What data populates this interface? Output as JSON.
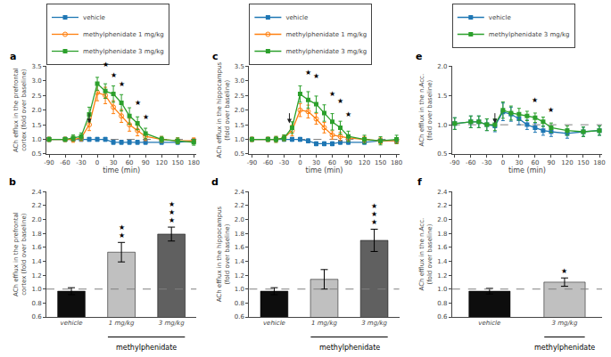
{
  "chart_data": [
    {
      "type": "line",
      "title": "a",
      "xlabel": "time (min)",
      "ylabel": "ACh efflux in the prefrontal\ncortex (fold over baseline)",
      "x": [
        -90,
        -60,
        -45,
        -30,
        -15,
        0,
        15,
        30,
        45,
        60,
        75,
        90,
        120,
        150,
        180
      ],
      "xlim": [
        -95,
        185
      ],
      "xticks": [
        -90,
        -60,
        -30,
        0,
        30,
        60,
        90,
        120,
        150,
        180
      ],
      "ylim": [
        0.5,
        3.5
      ],
      "yticks": [
        0.5,
        {
          "value": 1.0,
          "label": "1.0"
        },
        1.5,
        {
          "value": 2.0,
          "label": "2.0"
        },
        2.5,
        {
          "value": 3.0,
          "label": "3.0"
        },
        3.5
      ],
      "grid": false,
      "legend": "top left",
      "series": [
        {
          "name": "vehicle",
          "marker": "square",
          "line_style": "solid",
          "values": [
            1.0,
            1.0,
            1.0,
            1.0,
            1.0,
            1.0,
            1.0,
            0.9,
            0.9,
            0.9,
            0.9,
            0.9,
            0.9,
            0.9,
            0.95
          ],
          "errors": [
            0.07,
            0.07,
            0.07,
            0.07,
            0.07,
            0.07,
            0.07,
            0.07,
            0.07,
            0.07,
            0.07,
            0.07,
            0.07,
            0.07,
            0.07
          ]
        },
        {
          "name": "methylphenidate 1 mg/kg",
          "marker": "circle-open",
          "line_style": "solid",
          "values": [
            1.0,
            1.0,
            1.0,
            1.05,
            1.5,
            2.6,
            2.5,
            2.1,
            1.8,
            1.5,
            1.3,
            1.1,
            1.0,
            0.95,
            0.95
          ],
          "errors": [
            0.07,
            0.07,
            0.1,
            0.1,
            0.2,
            0.28,
            0.28,
            0.22,
            0.22,
            0.22,
            0.18,
            0.14,
            0.1,
            0.1,
            0.1
          ]
        },
        {
          "name": "methylphenidate 3 mg/kg",
          "marker": "square",
          "line_style": "solid",
          "values": [
            1.0,
            1.0,
            1.05,
            1.1,
            1.85,
            2.9,
            2.65,
            2.55,
            2.25,
            1.8,
            1.55,
            1.2,
            1.0,
            0.95,
            0.9
          ],
          "errors": [
            0.07,
            0.07,
            0.1,
            0.12,
            0.25,
            0.22,
            0.25,
            0.28,
            0.28,
            0.28,
            0.22,
            0.18,
            0.1,
            0.1,
            0.1
          ]
        }
      ],
      "annotations": [
        {
          "x": 15,
          "y": 3.35,
          "text": "★"
        },
        {
          "x": 30,
          "y": 3.0,
          "text": "★"
        },
        {
          "x": 45,
          "y": 2.68,
          "text": "★"
        },
        {
          "x": 75,
          "y": 2.05,
          "text": "★"
        },
        {
          "x": 90,
          "y": 1.55,
          "text": "★"
        },
        {
          "x": -15,
          "marker": "arrow"
        },
        {
          "y": 1.0,
          "line_style": "dashed"
        }
      ]
    },
    {
      "type": "line",
      "title": "c",
      "xlabel": "time (min)",
      "ylabel": "ACh efflux in the hippocampus\n(fold over baseline)",
      "x": [
        -90,
        -60,
        -45,
        -30,
        -15,
        0,
        15,
        30,
        45,
        60,
        75,
        90,
        120,
        150,
        180
      ],
      "xlim": [
        -95,
        185
      ],
      "xticks": [
        -90,
        -60,
        -30,
        0,
        30,
        60,
        90,
        120,
        150,
        180
      ],
      "ylim": [
        0.5,
        3.5
      ],
      "yticks": [
        0.5,
        {
          "value": 1.0,
          "label": "1.0"
        },
        1.5,
        {
          "value": 2.0,
          "label": "2.0"
        },
        2.5,
        {
          "value": 3.0,
          "label": "3.0"
        },
        3.5
      ],
      "grid": false,
      "legend": "top left",
      "series": [
        {
          "name": "vehicle",
          "marker": "square",
          "line_style": "solid",
          "values": [
            1.0,
            1.0,
            1.0,
            1.0,
            1.0,
            1.0,
            0.95,
            0.85,
            0.85,
            0.85,
            0.9,
            0.9,
            0.9,
            0.95,
            0.95
          ],
          "errors": [
            0.07,
            0.07,
            0.07,
            0.07,
            0.07,
            0.07,
            0.07,
            0.07,
            0.07,
            0.07,
            0.07,
            0.07,
            0.07,
            0.07,
            0.07
          ]
        },
        {
          "name": "methylphenidate 1 mg/kg",
          "marker": "circle-open",
          "line_style": "solid",
          "values": [
            1.0,
            1.0,
            1.0,
            1.05,
            1.3,
            2.0,
            1.95,
            1.7,
            1.4,
            1.15,
            1.1,
            1.05,
            1.0,
            0.95,
            0.95
          ],
          "errors": [
            0.07,
            0.07,
            0.1,
            0.1,
            0.18,
            0.22,
            0.22,
            0.18,
            0.18,
            0.14,
            0.14,
            0.1,
            0.1,
            0.1,
            0.1
          ]
        },
        {
          "name": "methylphenidate 3 mg/kg",
          "marker": "square",
          "line_style": "solid",
          "values": [
            1.0,
            1.0,
            1.0,
            1.05,
            1.4,
            2.55,
            2.35,
            2.2,
            1.9,
            1.6,
            1.4,
            1.1,
            1.0,
            0.95,
            1.0
          ],
          "errors": [
            0.07,
            0.07,
            0.1,
            0.1,
            0.2,
            0.28,
            0.28,
            0.28,
            0.28,
            0.28,
            0.22,
            0.18,
            0.14,
            0.14,
            0.14
          ]
        }
      ],
      "annotations": [
        {
          "x": 15,
          "y": 3.1,
          "text": "★"
        },
        {
          "x": 30,
          "y": 2.95,
          "text": "★"
        },
        {
          "x": 60,
          "y": 2.35,
          "text": "★"
        },
        {
          "x": 75,
          "y": 2.12,
          "text": "★"
        },
        {
          "x": 90,
          "y": 1.65,
          "text": "★"
        },
        {
          "x": -20,
          "marker": "arrow"
        },
        {
          "y": 1.0,
          "line_style": "dashed"
        }
      ]
    },
    {
      "type": "line",
      "title": "e",
      "xlabel": "time (min)",
      "ylabel": "ACh efflux in the n.Acc.\n(fold over baseline)",
      "x": [
        -90,
        -60,
        -45,
        -30,
        -15,
        0,
        15,
        30,
        45,
        60,
        75,
        90,
        120,
        150,
        180
      ],
      "xlim": [
        -95,
        185
      ],
      "xticks": [
        -90,
        -60,
        -30,
        0,
        30,
        60,
        90,
        120,
        150,
        180
      ],
      "ylim": [
        0.5,
        2.0
      ],
      "yticks": [
        0.5,
        {
          "value": 1.0,
          "label": "1.0"
        },
        1.5,
        {
          "value": 2.0,
          "label": "2.0"
        }
      ],
      "grid": false,
      "legend": "top left",
      "series": [
        {
          "name": "vehicle",
          "marker": "square",
          "line_style": "solid",
          "values": [
            1.02,
            1.05,
            1.05,
            1.0,
            0.98,
            1.22,
            1.18,
            1.1,
            1.0,
            0.95,
            0.9,
            0.88,
            0.85,
            0.88,
            0.9
          ],
          "errors": [
            0.1,
            0.1,
            0.1,
            0.1,
            0.1,
            0.15,
            0.12,
            0.1,
            0.08,
            0.08,
            0.08,
            0.08,
            0.08,
            0.08,
            0.08
          ]
        },
        {
          "name": "methylphenidate 3 mg/kg",
          "marker": "square",
          "line_style": "solid",
          "values": [
            1.02,
            1.05,
            1.05,
            1.0,
            1.0,
            1.25,
            1.2,
            1.18,
            1.15,
            1.12,
            1.05,
            0.95,
            0.9,
            0.88,
            0.9
          ],
          "errors": [
            0.1,
            0.1,
            0.1,
            0.1,
            0.1,
            0.14,
            0.12,
            0.1,
            0.08,
            0.08,
            0.08,
            0.08,
            0.08,
            0.08,
            0.08
          ]
        }
      ],
      "annotations": [
        {
          "x": 60,
          "y": 1.32,
          "text": "★"
        },
        {
          "x": 90,
          "y": 1.15,
          "text": "★"
        },
        {
          "x": -15,
          "marker": "arrow"
        },
        {
          "y": 1.0,
          "line_style": "dashed"
        }
      ]
    },
    {
      "type": "bar",
      "title": "b",
      "ylabel": "ACh efflux in the prefrontal\ncortex (fold over baseline)",
      "categories": [
        "vehicle",
        "1 mg/kg",
        "3 mg/kg"
      ],
      "values": [
        0.97,
        1.53,
        1.79
      ],
      "errors": [
        0.05,
        0.14,
        0.1
      ],
      "colors": [
        "#0d0d0d",
        "#c0c0c0",
        "#606060"
      ],
      "ylim": [
        0.6,
        2.4
      ],
      "yticks": [
        0.6,
        0.8,
        {
          "value": 1.0,
          "label": "1.0"
        },
        1.2,
        1.4,
        1.6,
        1.8,
        {
          "value": 2.0,
          "label": "2.0"
        },
        2.2,
        2.4
      ],
      "grid": false,
      "annotations": [
        {
          "x": 1,
          "text": "★"
        },
        {
          "x": 1,
          "text": "★"
        },
        {
          "x": 2,
          "text": "★"
        },
        {
          "x": 2,
          "text": "★"
        },
        {
          "x": 2,
          "text": "★"
        },
        {
          "x": [
            1,
            2
          ],
          "text": "methylphenidate"
        },
        {
          "y": 1.0,
          "line_style": "dashed"
        }
      ]
    },
    {
      "type": "bar",
      "title": "d",
      "ylabel": "ACh efflux in the hippocampus\n(fold over baseline)",
      "categories": [
        "vehicle",
        "1 mg/kg",
        "3 mg/kg"
      ],
      "values": [
        0.97,
        1.14,
        1.7
      ],
      "errors": [
        0.05,
        0.14,
        0.16
      ],
      "colors": [
        "#0d0d0d",
        "#c0c0c0",
        "#606060"
      ],
      "ylim": [
        0.6,
        2.4
      ],
      "yticks": [
        0.6,
        0.8,
        {
          "value": 1.0,
          "label": "1.0"
        },
        1.2,
        1.4,
        1.6,
        1.8,
        {
          "value": 2.0,
          "label": "2.0"
        },
        2.2,
        2.4
      ],
      "grid": false,
      "annotations": [
        {
          "x": 2,
          "text": "★"
        },
        {
          "x": 2,
          "text": "★"
        },
        {
          "x": 2,
          "text": "★"
        },
        {
          "x": [
            1,
            2
          ],
          "text": "methylphenidate"
        },
        {
          "y": 1.0,
          "line_style": "dashed"
        }
      ]
    },
    {
      "type": "bar",
      "title": "f",
      "ylabel": "ACh efflux in the n.Acc.\n(fold over baseline)",
      "categories": [
        "vehicle",
        "3 mg/kg"
      ],
      "values": [
        0.97,
        1.1
      ],
      "errors": [
        0.04,
        0.06
      ],
      "colors": [
        "#0d0d0d",
        "#c0c0c0"
      ],
      "ylim": [
        0.6,
        2.4
      ],
      "yticks": [
        0.6,
        0.8,
        {
          "value": 1.0,
          "label": "1.0"
        },
        1.2,
        1.4,
        1.6,
        1.8,
        {
          "value": 2.0,
          "label": "2.0"
        },
        2.2,
        2.4
      ],
      "grid": false,
      "annotations": [
        {
          "x": 1,
          "text": "★"
        },
        {
          "x": [
            1,
            1
          ],
          "text": "methylphenidate"
        },
        {
          "y": 1.0,
          "line_style": "dashed"
        }
      ]
    }
  ]
}
